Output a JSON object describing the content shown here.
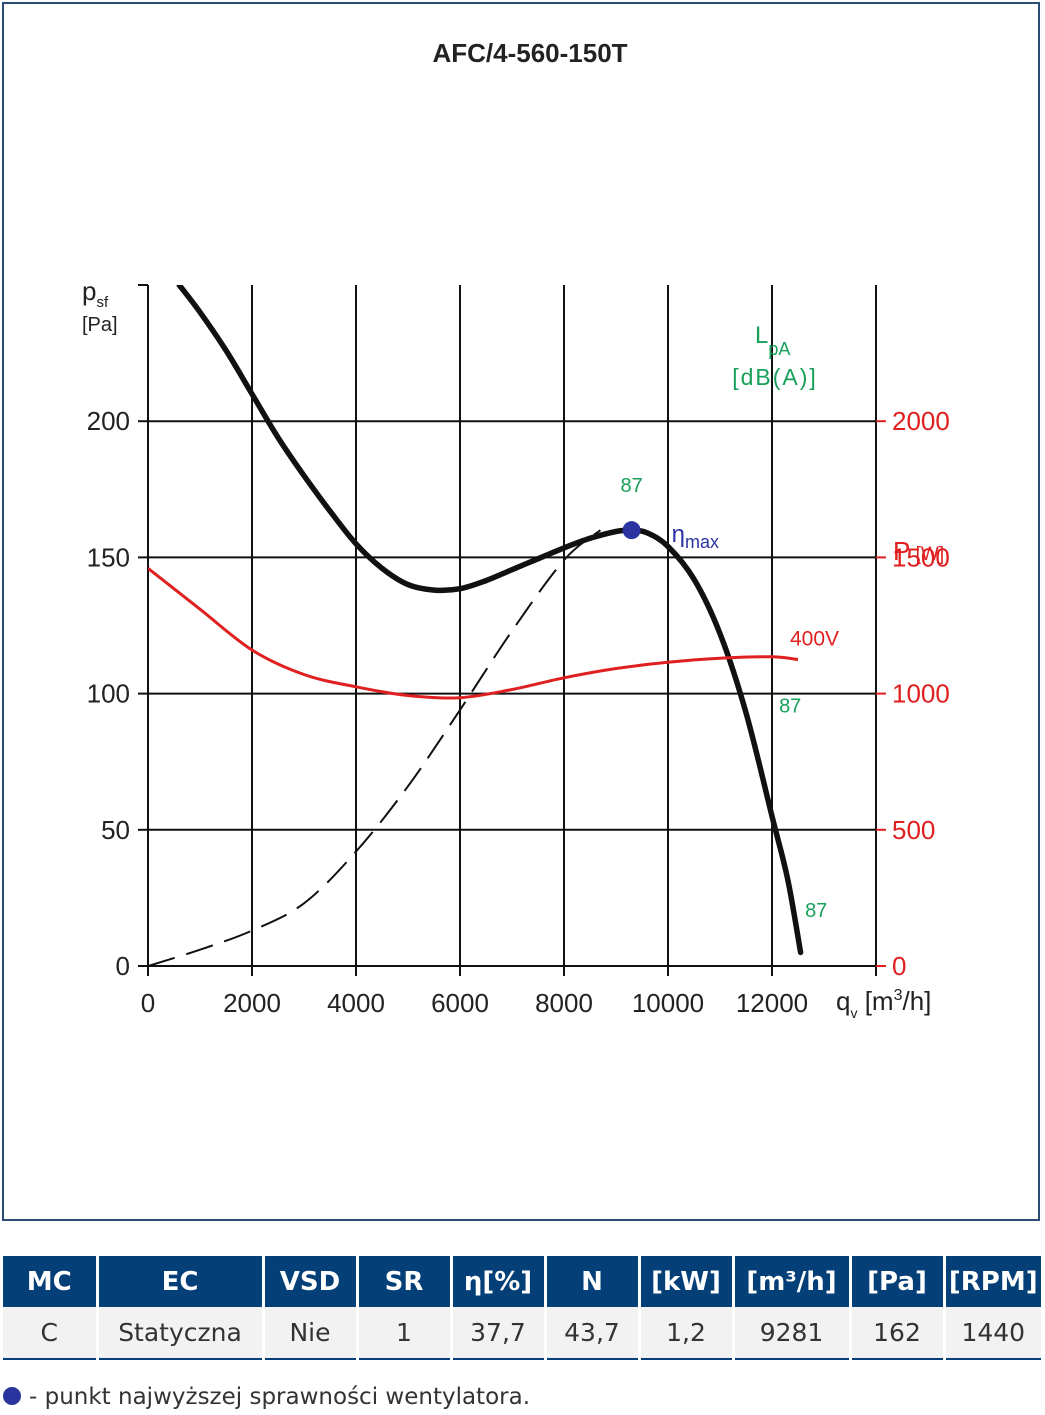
{
  "chart_data": {
    "type": "line",
    "title": "AFC/4-560-150T",
    "x_axis": {
      "label_main": "q",
      "label_sub": "v",
      "label_unit_prefix": "[m",
      "label_unit_sup": "3",
      "label_unit_suffix": "/h]",
      "range": [
        0,
        14000
      ],
      "ticks": [
        0,
        2000,
        4000,
        6000,
        8000,
        10000,
        12000
      ]
    },
    "y_axis_left": {
      "label_main": "p",
      "label_sub": "sf",
      "label_unit": "[Pa]",
      "range": [
        0,
        250
      ],
      "ticks": [
        0,
        50,
        100,
        150,
        200
      ]
    },
    "y_axis_right": {
      "label_main": "P",
      "label_unit": "[W]",
      "range": [
        0,
        2500
      ],
      "ticks": [
        0,
        500,
        1000,
        1500,
        2000
      ],
      "color": "#e02020"
    },
    "grid": true,
    "noise_label": {
      "main": "L",
      "sub": "pA",
      "unit": "[dB(A)]",
      "color": "#17a05a"
    },
    "series": [
      {
        "id": "pressure",
        "axis": "left",
        "style": "solid",
        "color": "#111111",
        "x": [
          600,
          1000,
          1500,
          2000,
          2500,
          3000,
          3500,
          4000,
          4500,
          5000,
          5500,
          6000,
          6500,
          7000,
          7500,
          8000,
          8500,
          9000,
          9300,
          9600,
          10000,
          10500,
          11000,
          11500,
          12000,
          12300,
          12550
        ],
        "y": [
          250,
          240,
          226,
          210,
          194,
          180,
          167,
          155,
          146,
          140,
          138,
          138.5,
          141.5,
          145.5,
          149.5,
          153.5,
          157,
          159.5,
          160,
          159,
          154,
          142,
          122,
          93,
          55,
          32,
          5
        ]
      },
      {
        "id": "system-curve",
        "axis": "left",
        "style": "dashed",
        "color": "#111111",
        "x": [
          0,
          1000,
          2000,
          3000,
          4000,
          5000,
          6000,
          7000,
          8000,
          8700
        ],
        "y": [
          0,
          6,
          13,
          23,
          42,
          66,
          94,
          123,
          149,
          160
        ]
      },
      {
        "id": "power-400V",
        "name": "400V",
        "axis": "right",
        "style": "solid",
        "color": "#e02020",
        "x": [
          0,
          1000,
          2000,
          3000,
          4000,
          5000,
          6000,
          7000,
          8000,
          9000,
          10000,
          11000,
          12000,
          12500
        ],
        "y": [
          1460,
          1310,
          1160,
          1070,
          1025,
          993,
          985,
          1015,
          1058,
          1092,
          1115,
          1130,
          1135,
          1125
        ]
      }
    ],
    "annotations": [
      {
        "text": "87",
        "x": 9300,
        "y": 174,
        "color": "#17a05a"
      },
      {
        "text": "87",
        "x": 12350,
        "y": 93,
        "color": "#17a05a"
      },
      {
        "text": "87",
        "x": 12850,
        "y": 18,
        "color": "#17a05a"
      }
    ],
    "eta_max": {
      "x": 9300,
      "y": 160,
      "label_main": "η",
      "label_sub": "max",
      "color": "#2a33a0"
    }
  },
  "table": {
    "headers": [
      "MC",
      "EC",
      "VSD",
      "SR",
      "η[%]",
      "N",
      "[kW]",
      "[m³/h]",
      "[Pa]",
      "[RPM]"
    ],
    "rows": [
      [
        "C",
        "Statyczna",
        "Nie",
        "1",
        "37,7",
        "43,7",
        "1,2",
        "9281",
        "162",
        "1440"
      ]
    ]
  },
  "footnote": "- punkt najwyższej sprawności wentylatora."
}
